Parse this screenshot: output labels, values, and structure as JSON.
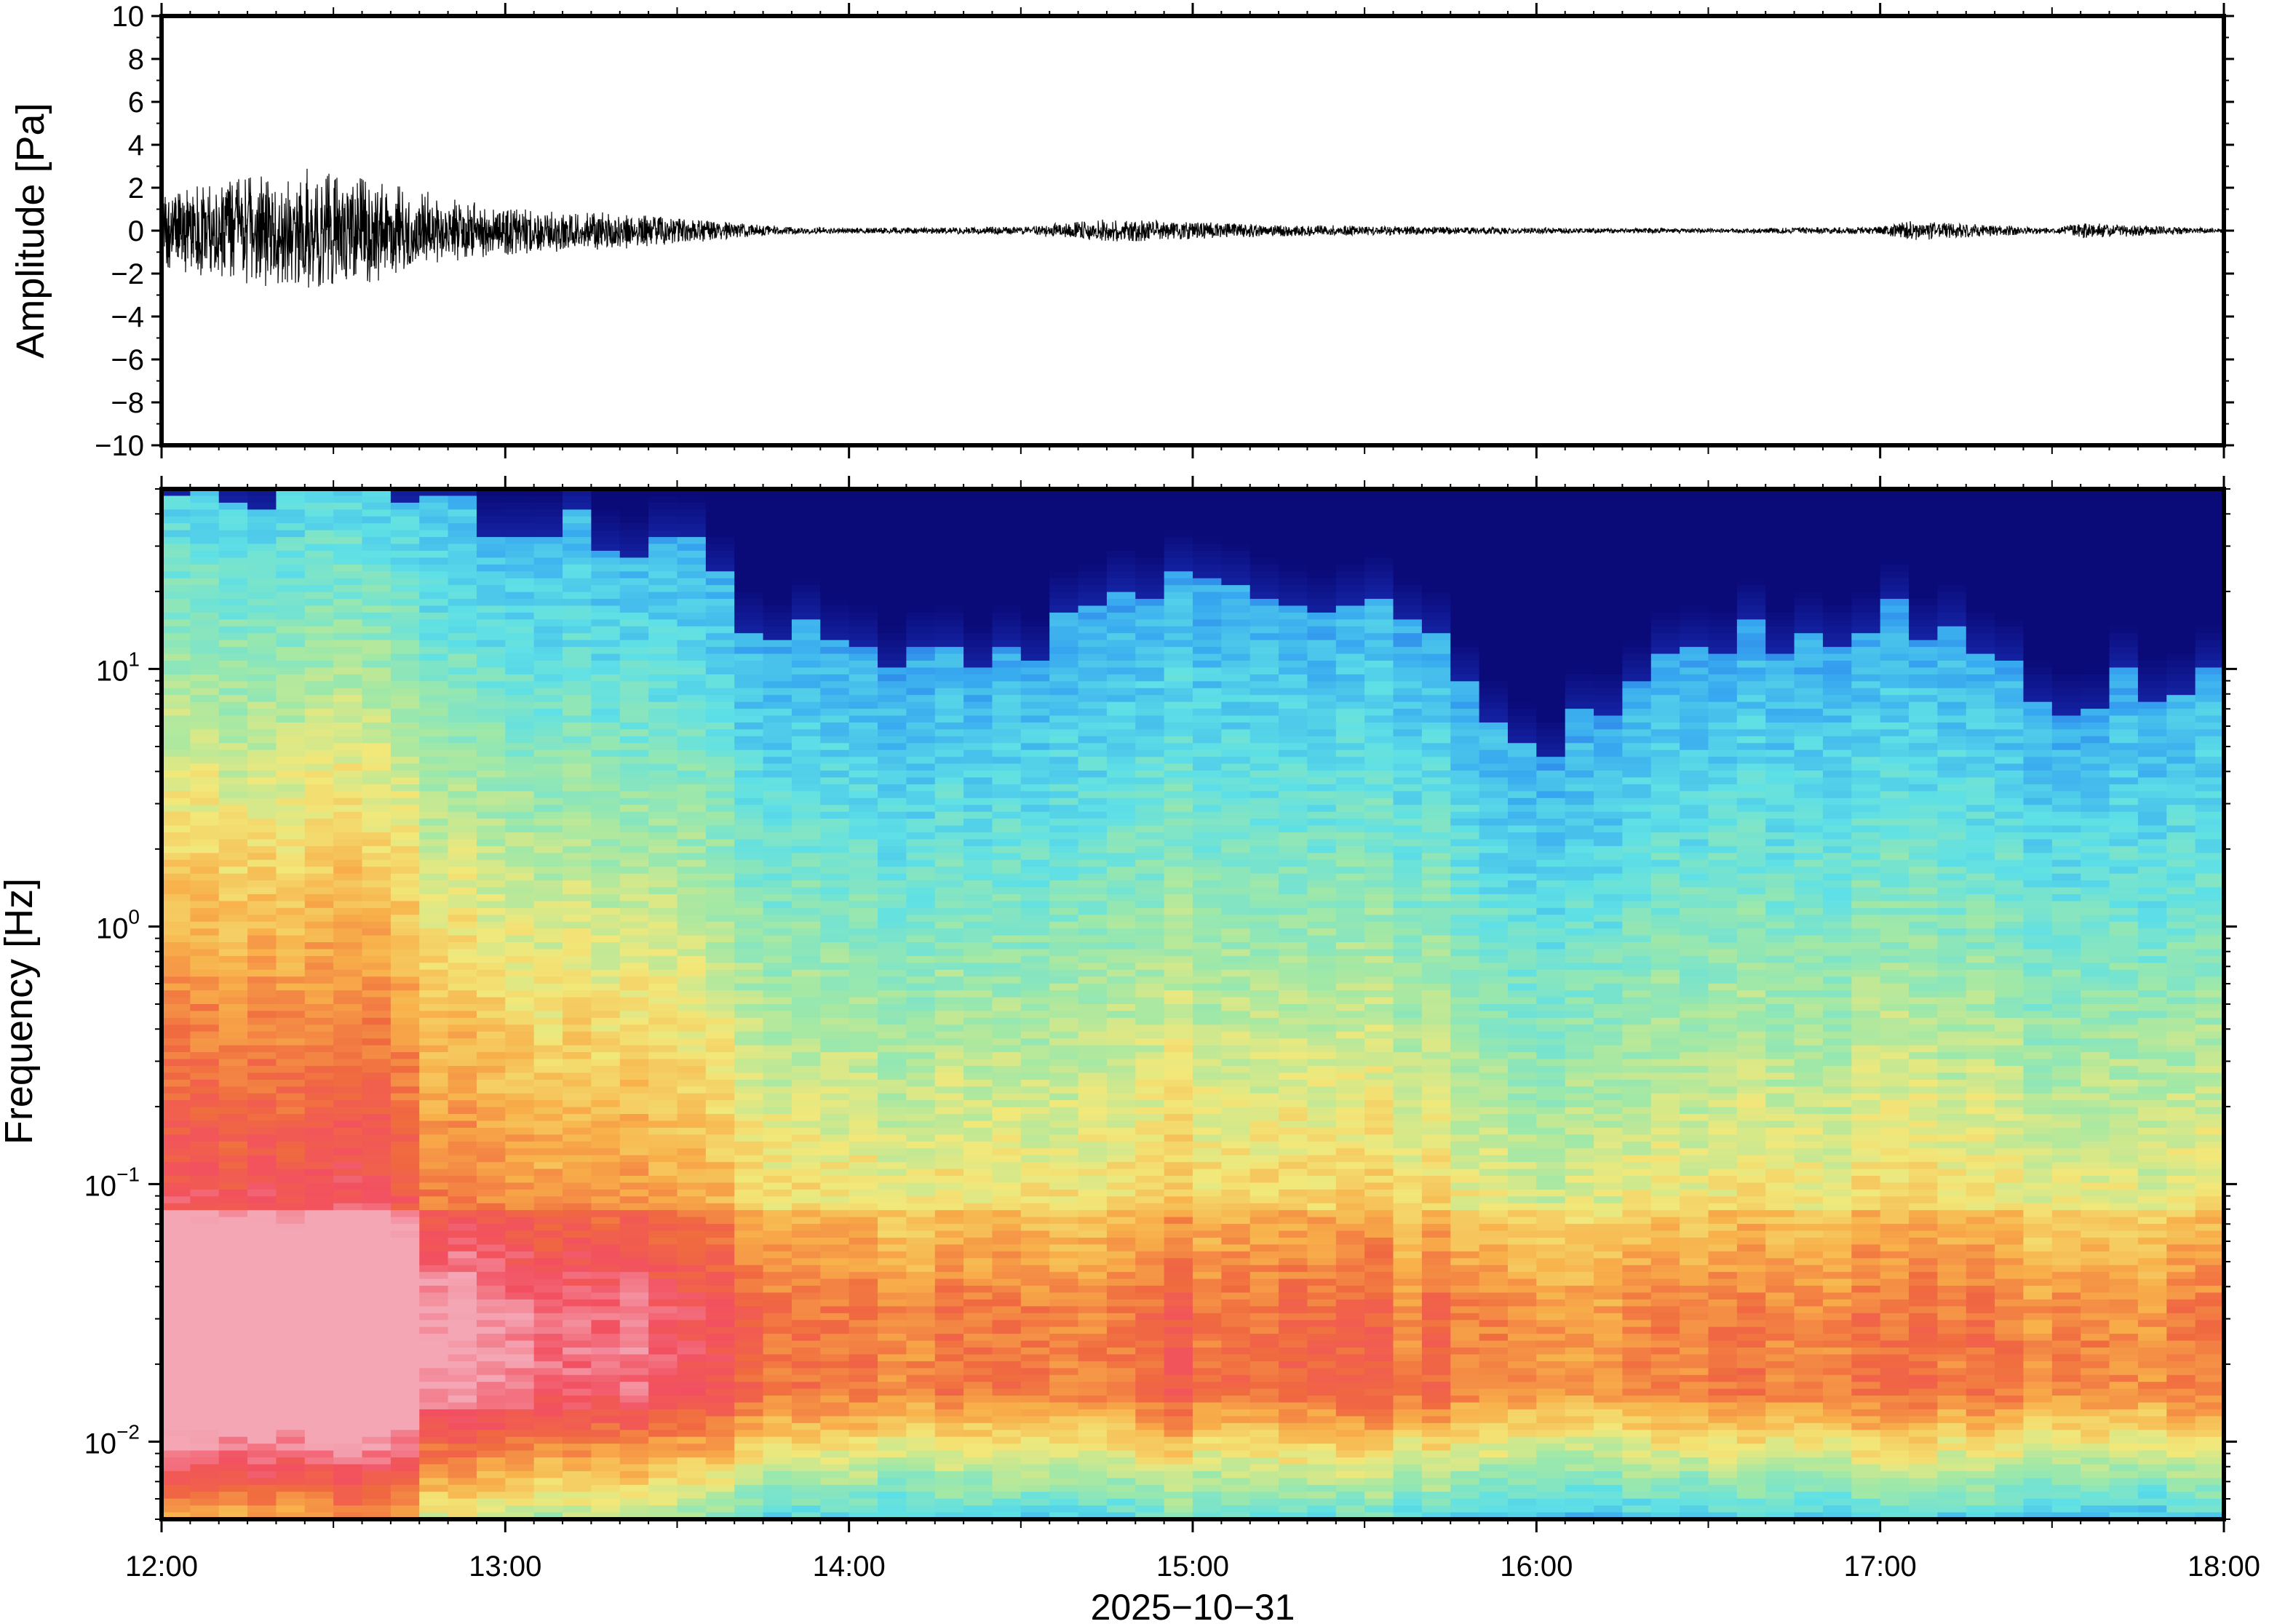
{
  "chart_data": [
    {
      "type": "line",
      "panel": "waveform",
      "ylabel": "Amplitude [Pa]",
      "ylim": [
        -10,
        10
      ],
      "yticks": [
        {
          "value": 10,
          "label": "10"
        },
        {
          "value": 8,
          "label": "8"
        },
        {
          "value": 6,
          "label": "6"
        },
        {
          "value": 4,
          "label": "4"
        },
        {
          "value": 2,
          "label": "2"
        },
        {
          "value": 0,
          "label": "0"
        },
        {
          "value": -2,
          "label": "−2"
        },
        {
          "value": -4,
          "label": "−4"
        },
        {
          "value": -6,
          "label": "−6"
        },
        {
          "value": -8,
          "label": "−8"
        },
        {
          "value": -10,
          "label": "−10"
        }
      ],
      "xlim": [
        "12:00",
        "18:00"
      ],
      "line_color": "#000000",
      "envelope": {
        "description_units": "Pa (approximate peak amplitude over time)",
        "time": [
          "12:00",
          "12:10",
          "12:20",
          "12:30",
          "12:40",
          "12:50",
          "13:00",
          "13:10",
          "13:20",
          "13:30",
          "13:40",
          "13:50",
          "14:00",
          "14:30",
          "14:45",
          "15:00",
          "15:15",
          "15:30",
          "16:00",
          "16:30",
          "17:00",
          "17:05",
          "17:30",
          "17:35",
          "18:00"
        ],
        "peak": [
          2.0,
          2.5,
          3.0,
          3.0,
          2.5,
          1.5,
          1.3,
          1.0,
          0.9,
          0.7,
          0.4,
          0.2,
          0.15,
          0.2,
          0.6,
          0.45,
          0.3,
          0.25,
          0.15,
          0.12,
          0.2,
          0.5,
          0.15,
          0.4,
          0.1
        ]
      }
    },
    {
      "type": "heatmap",
      "panel": "spectrogram",
      "ylabel": "Frequency [Hz]",
      "xlabel": "2025−10−31",
      "yscale": "log",
      "ylim": [
        0.005,
        50
      ],
      "yticks": [
        {
          "value": 0.01,
          "base": "10",
          "exp": "−2"
        },
        {
          "value": 0.1,
          "base": "10",
          "exp": "−1"
        },
        {
          "value": 1,
          "base": "10",
          "exp": "0"
        },
        {
          "value": 10,
          "base": "10",
          "exp": "1"
        }
      ],
      "xlim": [
        "12:00",
        "18:00"
      ],
      "xticks": [
        "12:00",
        "13:00",
        "14:00",
        "15:00",
        "16:00",
        "17:00",
        "18:00"
      ],
      "colormap": "jet-like (dark blue low power → red/pink high power)",
      "colormap_stops": [
        "#0a0a78",
        "#1f3fd6",
        "#37a8f0",
        "#5ee0e6",
        "#9fe8a8",
        "#f2e87a",
        "#f8b04a",
        "#f06a40",
        "#f25060",
        "#f4a6b4"
      ],
      "upper_band_edge_hz": {
        "time": [
          "12:00",
          "12:30",
          "13:00",
          "13:30",
          "13:45",
          "14:00",
          "14:30",
          "15:00",
          "15:30",
          "16:00",
          "16:30",
          "17:00",
          "17:30",
          "18:00"
        ],
        "value": [
          50,
          50,
          40,
          30,
          14,
          12,
          12,
          22,
          18,
          4,
          12,
          16,
          8,
          10
        ]
      }
    }
  ]
}
